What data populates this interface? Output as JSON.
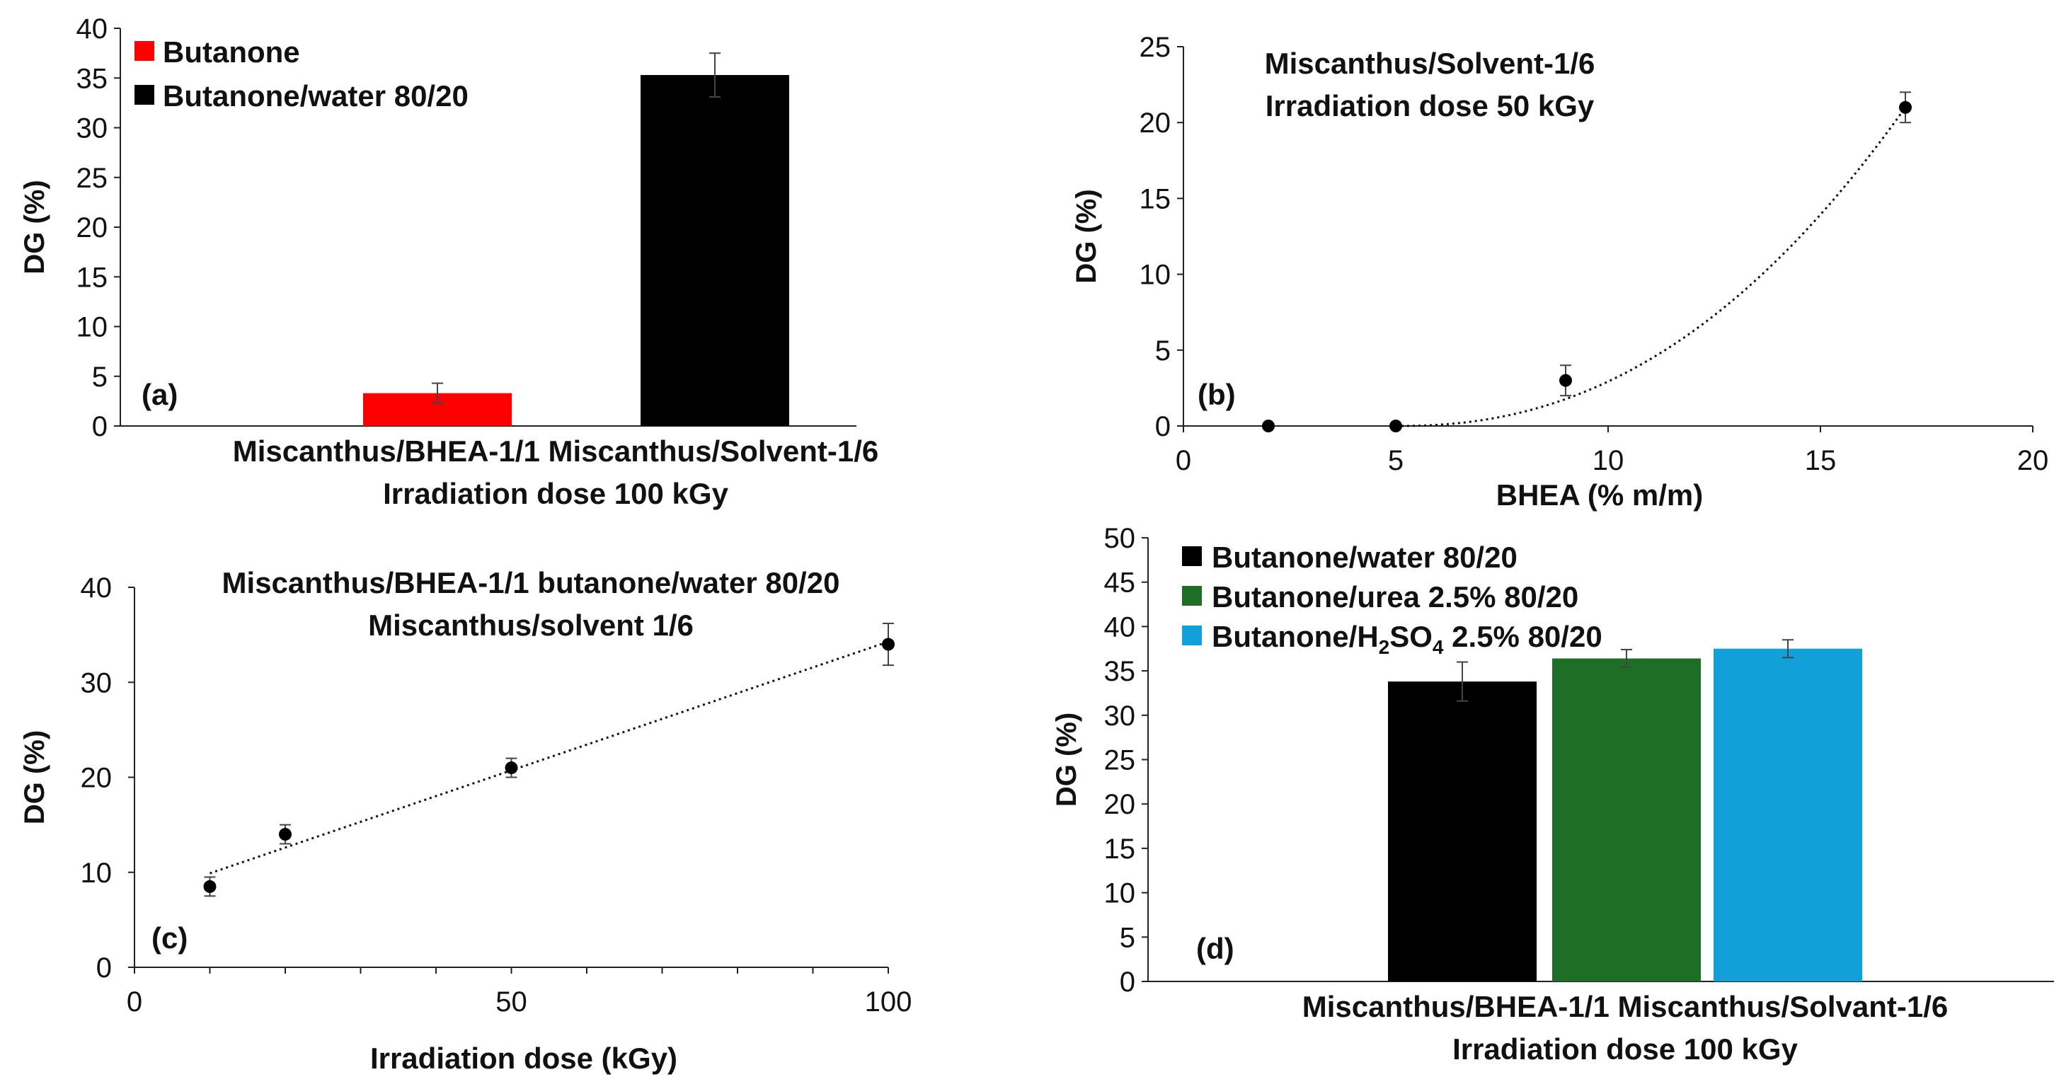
{
  "chart_data": [
    {
      "type": "bar",
      "panel": "(a)",
      "ylabel": "DG (%)",
      "ylim": [
        0,
        40
      ],
      "yticks": [
        "0",
        "5",
        "10",
        "15",
        "20",
        "25",
        "30",
        "35",
        "40"
      ],
      "xlabel_lines": [
        "Miscanthus/BHEA-1/1 Miscanthus/Solvent-1/6",
        "Irradiation dose 100 kGy"
      ],
      "legend_position": "top-left",
      "series": [
        {
          "name": "Butanone",
          "color": "#ff0000",
          "value": 3.3,
          "error": 1.0
        },
        {
          "name": "Butanone/water 80/20",
          "color": "#000000",
          "value": 35.3,
          "error": 2.2
        }
      ]
    },
    {
      "type": "scatter",
      "panel": "(b)",
      "annotation_lines": [
        "Miscanthus/Solvent-1/6",
        "Irradiation dose 50 kGy"
      ],
      "xlabel": "BHEA (% m/m)",
      "ylabel": "DG (%)",
      "xlim": [
        0,
        20
      ],
      "ylim": [
        0,
        25
      ],
      "xticks": [
        "0",
        "5",
        "10",
        "15",
        "20"
      ],
      "yticks": [
        "0",
        "5",
        "10",
        "15",
        "20",
        "25"
      ],
      "points": [
        {
          "x": 2,
          "y": 0,
          "error": 0
        },
        {
          "x": 5,
          "y": 0,
          "error": 0
        },
        {
          "x": 9,
          "y": 3,
          "error": 1
        },
        {
          "x": 17,
          "y": 21,
          "error": 1
        }
      ],
      "trendline": "polynomial (dotted)"
    },
    {
      "type": "scatter",
      "panel": "(c)",
      "annotation_lines": [
        "Miscanthus/BHEA-1/1 butanone/water 80/20",
        "Miscanthus/solvent 1/6"
      ],
      "xlabel": "Irradiation dose (kGy)",
      "ylabel": "DG (%)",
      "xlim": [
        0,
        100
      ],
      "ylim": [
        0,
        40
      ],
      "xticks": [
        "0",
        "50",
        "100"
      ],
      "yticks": [
        "0",
        "10",
        "20",
        "30",
        "40"
      ],
      "points": [
        {
          "x": 10,
          "y": 8.5,
          "error": 1
        },
        {
          "x": 20,
          "y": 14,
          "error": 1
        },
        {
          "x": 50,
          "y": 21,
          "error": 1
        },
        {
          "x": 100,
          "y": 34,
          "error": 2.2
        }
      ],
      "trendline": "linear (dotted)"
    },
    {
      "type": "bar",
      "panel": "(d)",
      "ylabel": "DG (%)",
      "ylim": [
        0,
        50
      ],
      "yticks": [
        "0",
        "5",
        "10",
        "15",
        "20",
        "25",
        "30",
        "35",
        "40",
        "45",
        "50"
      ],
      "xlabel_lines": [
        "Miscanthus/BHEA-1/1 Miscanthus/Solvant-1/6",
        "Irradiation dose 100 kGy"
      ],
      "legend_position": "top-left",
      "series": [
        {
          "name": "Butanone/water 80/20",
          "color": "#000000",
          "value": 33.8,
          "error": 2.2
        },
        {
          "name": "Butanone/urea 2.5% 80/20",
          "color": "#1e6e28",
          "value": 36.4,
          "error": 1
        },
        {
          "name": "Butanone/H2SO4 2.5% 80/20",
          "name_parts": [
            "Butanone/H",
            "2",
            "SO",
            "4",
            " 2.5% 80/20"
          ],
          "color": "#12a0d8",
          "value": 37.5,
          "error": 1
        }
      ]
    }
  ]
}
